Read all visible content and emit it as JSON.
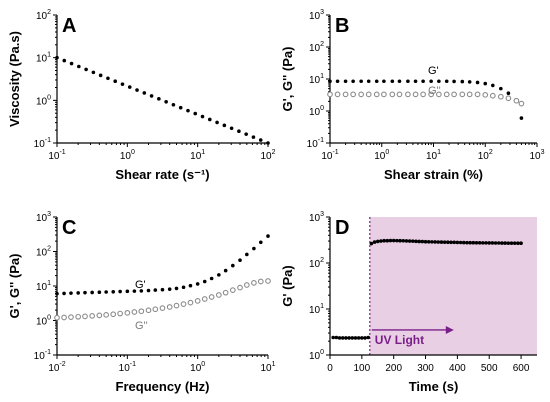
{
  "chart_data": [
    {
      "panel": "A",
      "type": "scatter",
      "xlabel": "Shear rate (s⁻¹)",
      "ylabel": "Viscosity (Pa.s)",
      "x_scale": "log",
      "y_scale": "log",
      "xlim": [
        0.1,
        100
      ],
      "ylim": [
        0.1,
        100
      ],
      "x_ticks": [
        0.1,
        1,
        10,
        100
      ],
      "x_tick_labels": [
        {
          "base": "10",
          "exp": "-1"
        },
        {
          "base": "10",
          "exp": "0"
        },
        {
          "base": "10",
          "exp": "1"
        },
        {
          "base": "10",
          "exp": "2"
        }
      ],
      "y_ticks": [
        0.1,
        1,
        10,
        100
      ],
      "y_tick_labels": [
        {
          "base": "10",
          "exp": "-1"
        },
        {
          "base": "10",
          "exp": "0"
        },
        {
          "base": "10",
          "exp": "1"
        },
        {
          "base": "10",
          "exp": "2"
        }
      ],
      "series": [
        {
          "name": "",
          "marker": "filled",
          "log_x_range": [
            -1,
            2
          ],
          "log_y_range": [
            1.0,
            -1.0
          ],
          "n_points": 30
        }
      ]
    },
    {
      "panel": "B",
      "type": "scatter",
      "xlabel": "Shear strain (%)",
      "ylabel": "G', G'' (Pa)",
      "x_scale": "log",
      "y_scale": "log",
      "xlim": [
        0.1,
        1000
      ],
      "ylim": [
        0.1,
        1000
      ],
      "x_ticks": [
        0.1,
        1,
        10,
        100,
        1000
      ],
      "x_tick_labels": [
        {
          "base": "10",
          "exp": "-1"
        },
        {
          "base": "10",
          "exp": "0"
        },
        {
          "base": "10",
          "exp": "1"
        },
        {
          "base": "10",
          "exp": "2"
        },
        {
          "base": "10",
          "exp": "3"
        }
      ],
      "y_ticks": [
        0.1,
        1,
        10,
        100,
        1000
      ],
      "y_tick_labels": [
        {
          "base": "10",
          "exp": "-1"
        },
        {
          "base": "10",
          "exp": "0"
        },
        {
          "base": "10",
          "exp": "1"
        },
        {
          "base": "10",
          "exp": "2"
        },
        {
          "base": "10",
          "exp": "3"
        }
      ],
      "series": [
        {
          "name": "G'",
          "marker": "filled",
          "points": [
            [
              0.1,
              8.5
            ],
            [
              0.14,
              8.5
            ],
            [
              0.2,
              8.5
            ],
            [
              0.28,
              8.5
            ],
            [
              0.4,
              8.5
            ],
            [
              0.56,
              8.5
            ],
            [
              0.8,
              8.5
            ],
            [
              1.1,
              8.5
            ],
            [
              1.6,
              8.5
            ],
            [
              2.2,
              8.5
            ],
            [
              3.2,
              8.5
            ],
            [
              4.5,
              8.5
            ],
            [
              6.3,
              8.5
            ],
            [
              9,
              8.5
            ],
            [
              12.7,
              8.5
            ],
            [
              18,
              8.5
            ],
            [
              25,
              8.4
            ],
            [
              36,
              8.3
            ],
            [
              50,
              8.1
            ],
            [
              71,
              7.8
            ],
            [
              100,
              7.2
            ],
            [
              140,
              6.3
            ],
            [
              200,
              5.0
            ],
            [
              280,
              3.6
            ],
            [
              400,
              2.0
            ],
            [
              500,
              0.6
            ]
          ]
        },
        {
          "name": "G''",
          "marker": "open",
          "points": [
            [
              0.1,
              3.3
            ],
            [
              0.14,
              3.3
            ],
            [
              0.2,
              3.3
            ],
            [
              0.28,
              3.3
            ],
            [
              0.4,
              3.3
            ],
            [
              0.56,
              3.3
            ],
            [
              0.8,
              3.3
            ],
            [
              1.1,
              3.3
            ],
            [
              1.6,
              3.3
            ],
            [
              2.2,
              3.3
            ],
            [
              3.2,
              3.3
            ],
            [
              4.5,
              3.3
            ],
            [
              6.3,
              3.3
            ],
            [
              9,
              3.3
            ],
            [
              12.7,
              3.3
            ],
            [
              18,
              3.3
            ],
            [
              25,
              3.3
            ],
            [
              36,
              3.3
            ],
            [
              50,
              3.3
            ],
            [
              71,
              3.3
            ],
            [
              100,
              3.2
            ],
            [
              140,
              3.0
            ],
            [
              200,
              2.8
            ],
            [
              280,
              2.5
            ],
            [
              400,
              2.1
            ],
            [
              500,
              1.7
            ]
          ]
        }
      ]
    },
    {
      "panel": "C",
      "type": "scatter",
      "xlabel": "Frequency (Hz)",
      "ylabel": "G', G'' (Pa)",
      "x_scale": "log",
      "y_scale": "log",
      "xlim": [
        0.01,
        10
      ],
      "ylim": [
        0.1,
        1000
      ],
      "x_ticks": [
        0.01,
        0.1,
        1,
        10
      ],
      "x_tick_labels": [
        {
          "base": "10",
          "exp": "-2"
        },
        {
          "base": "10",
          "exp": "-1"
        },
        {
          "base": "10",
          "exp": "0"
        },
        {
          "base": "10",
          "exp": "1"
        }
      ],
      "y_ticks": [
        0.1,
        1,
        10,
        100,
        1000
      ],
      "y_tick_labels": [
        {
          "base": "10",
          "exp": "-1"
        },
        {
          "base": "10",
          "exp": "0"
        },
        {
          "base": "10",
          "exp": "1"
        },
        {
          "base": "10",
          "exp": "2"
        },
        {
          "base": "10",
          "exp": "3"
        }
      ],
      "series": [
        {
          "name": "G'",
          "marker": "filled",
          "points": [
            [
              0.01,
              6.0
            ],
            [
              0.0126,
              6.1
            ],
            [
              0.0158,
              6.2
            ],
            [
              0.02,
              6.3
            ],
            [
              0.025,
              6.4
            ],
            [
              0.0316,
              6.5
            ],
            [
              0.04,
              6.6
            ],
            [
              0.05,
              6.7
            ],
            [
              0.063,
              6.8
            ],
            [
              0.079,
              6.9
            ],
            [
              0.1,
              7.0
            ],
            [
              0.126,
              7.1
            ],
            [
              0.158,
              7.2
            ],
            [
              0.2,
              7.4
            ],
            [
              0.25,
              7.6
            ],
            [
              0.316,
              7.8
            ],
            [
              0.4,
              8.1
            ],
            [
              0.5,
              8.5
            ],
            [
              0.63,
              9.2
            ],
            [
              0.79,
              10.2
            ],
            [
              1.0,
              11.5
            ],
            [
              1.26,
              13.5
            ],
            [
              1.58,
              16.5
            ],
            [
              2.0,
              21
            ],
            [
              2.5,
              28
            ],
            [
              3.16,
              39
            ],
            [
              4.0,
              56
            ],
            [
              5.0,
              82
            ],
            [
              6.3,
              122
            ],
            [
              7.9,
              185
            ],
            [
              10,
              280
            ]
          ]
        },
        {
          "name": "G''",
          "marker": "open",
          "points": [
            [
              0.01,
              1.2
            ],
            [
              0.0126,
              1.22
            ],
            [
              0.0158,
              1.25
            ],
            [
              0.02,
              1.28
            ],
            [
              0.025,
              1.32
            ],
            [
              0.0316,
              1.36
            ],
            [
              0.04,
              1.41
            ],
            [
              0.05,
              1.46
            ],
            [
              0.063,
              1.52
            ],
            [
              0.079,
              1.59
            ],
            [
              0.1,
              1.67
            ],
            [
              0.126,
              1.76
            ],
            [
              0.158,
              1.86
            ],
            [
              0.2,
              1.98
            ],
            [
              0.25,
              2.12
            ],
            [
              0.316,
              2.28
            ],
            [
              0.4,
              2.47
            ],
            [
              0.5,
              2.7
            ],
            [
              0.63,
              2.98
            ],
            [
              0.79,
              3.3
            ],
            [
              1.0,
              3.7
            ],
            [
              1.26,
              4.2
            ],
            [
              1.58,
              4.8
            ],
            [
              2.0,
              5.5
            ],
            [
              2.5,
              6.4
            ],
            [
              3.16,
              7.6
            ],
            [
              4.0,
              9.0
            ],
            [
              5.0,
              10.7
            ],
            [
              6.3,
              12.3
            ],
            [
              7.9,
              13.5
            ],
            [
              10,
              14
            ]
          ]
        }
      ]
    },
    {
      "panel": "D",
      "type": "scatter",
      "xlabel": "Time (s)",
      "ylabel": "G' (Pa)",
      "x_scale": "linear",
      "y_scale": "log",
      "xlim": [
        0,
        650
      ],
      "ylim": [
        1,
        1000
      ],
      "x_ticks": [
        0,
        100,
        200,
        300,
        400,
        500,
        600
      ],
      "x_tick_labels": [
        "0",
        "100",
        "200",
        "300",
        "400",
        "500",
        "600"
      ],
      "y_ticks": [
        1,
        10,
        100,
        1000
      ],
      "y_tick_labels": [
        {
          "base": "10",
          "exp": "0"
        },
        {
          "base": "10",
          "exp": "1"
        },
        {
          "base": "10",
          "exp": "2"
        },
        {
          "base": "10",
          "exp": "3"
        }
      ],
      "uv_start": 125,
      "shade_color": "#e8cfe4",
      "uv_line_color": "#7a1f8a",
      "annotation": "UV Light",
      "series": [
        {
          "name": "",
          "marker": "filled",
          "points": [
            [
              10,
              2.4
            ],
            [
              20,
              2.4
            ],
            [
              30,
              2.35
            ],
            [
              40,
              2.35
            ],
            [
              50,
              2.35
            ],
            [
              60,
              2.35
            ],
            [
              70,
              2.35
            ],
            [
              80,
              2.35
            ],
            [
              90,
              2.35
            ],
            [
              100,
              2.35
            ],
            [
              110,
              2.35
            ],
            [
              120,
              2.4
            ],
            [
              130,
              265
            ],
            [
              140,
              285
            ],
            [
              150,
              295
            ],
            [
              160,
              300
            ],
            [
              170,
              305
            ],
            [
              180,
              305
            ],
            [
              190,
              308
            ],
            [
              200,
              308
            ],
            [
              210,
              306
            ],
            [
              220,
              305
            ],
            [
              230,
              304
            ],
            [
              240,
              302
            ],
            [
              250,
              300
            ],
            [
              260,
              298
            ],
            [
              270,
              296
            ],
            [
              280,
              294
            ],
            [
              290,
              292
            ],
            [
              300,
              290
            ],
            [
              310,
              289
            ],
            [
              320,
              288
            ],
            [
              330,
              287
            ],
            [
              340,
              286
            ],
            [
              350,
              285
            ],
            [
              360,
              284
            ],
            [
              370,
              283
            ],
            [
              380,
              282
            ],
            [
              390,
              281
            ],
            [
              400,
              280
            ],
            [
              410,
              279
            ],
            [
              420,
              278
            ],
            [
              430,
              277
            ],
            [
              440,
              276
            ],
            [
              450,
              276
            ],
            [
              460,
              275
            ],
            [
              470,
              275
            ],
            [
              480,
              274
            ],
            [
              490,
              274
            ],
            [
              500,
              273
            ],
            [
              510,
              273
            ],
            [
              520,
              272
            ],
            [
              530,
              272
            ],
            [
              540,
              271
            ],
            [
              550,
              271
            ],
            [
              560,
              270
            ],
            [
              570,
              270
            ],
            [
              580,
              270
            ],
            [
              590,
              269
            ],
            [
              600,
              269
            ]
          ]
        }
      ]
    }
  ]
}
